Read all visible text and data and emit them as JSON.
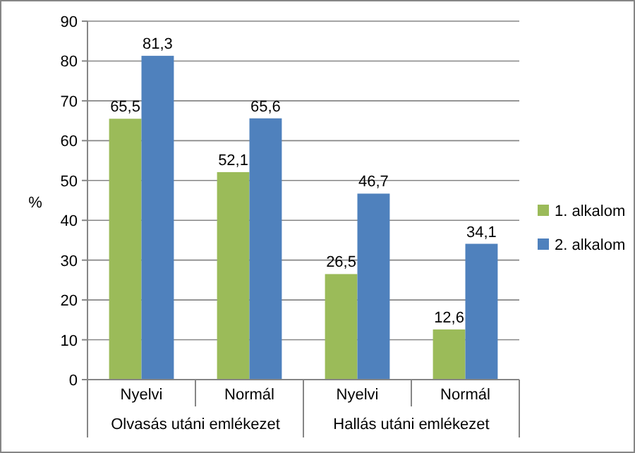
{
  "chart_data": {
    "type": "bar",
    "ylabel": "%",
    "categories": [
      "Nyelvi",
      "Normál",
      "Nyelvi",
      "Normál"
    ],
    "annotations": [
      "Olvasás utáni emlékezet",
      "Hallás utáni emlékezet"
    ],
    "series": [
      {
        "name": "1. alkalom",
        "color": "#9bbb59",
        "values": [
          65.5,
          52.1,
          26.5,
          12.6
        ],
        "value_labels": [
          "65,5",
          "52,1",
          "26,5",
          "12,6"
        ]
      },
      {
        "name": "2. alkalom",
        "color": "#4f81bd",
        "values": [
          81.3,
          65.6,
          46.7,
          34.1
        ],
        "value_labels": [
          "81,3",
          "65,6",
          "46,7",
          "34,1"
        ]
      }
    ],
    "ylim": [
      0,
      90
    ],
    "yticks": [
      0,
      10,
      20,
      30,
      40,
      50,
      60,
      70,
      80,
      90
    ],
    "grid": "y",
    "legend": "right"
  }
}
